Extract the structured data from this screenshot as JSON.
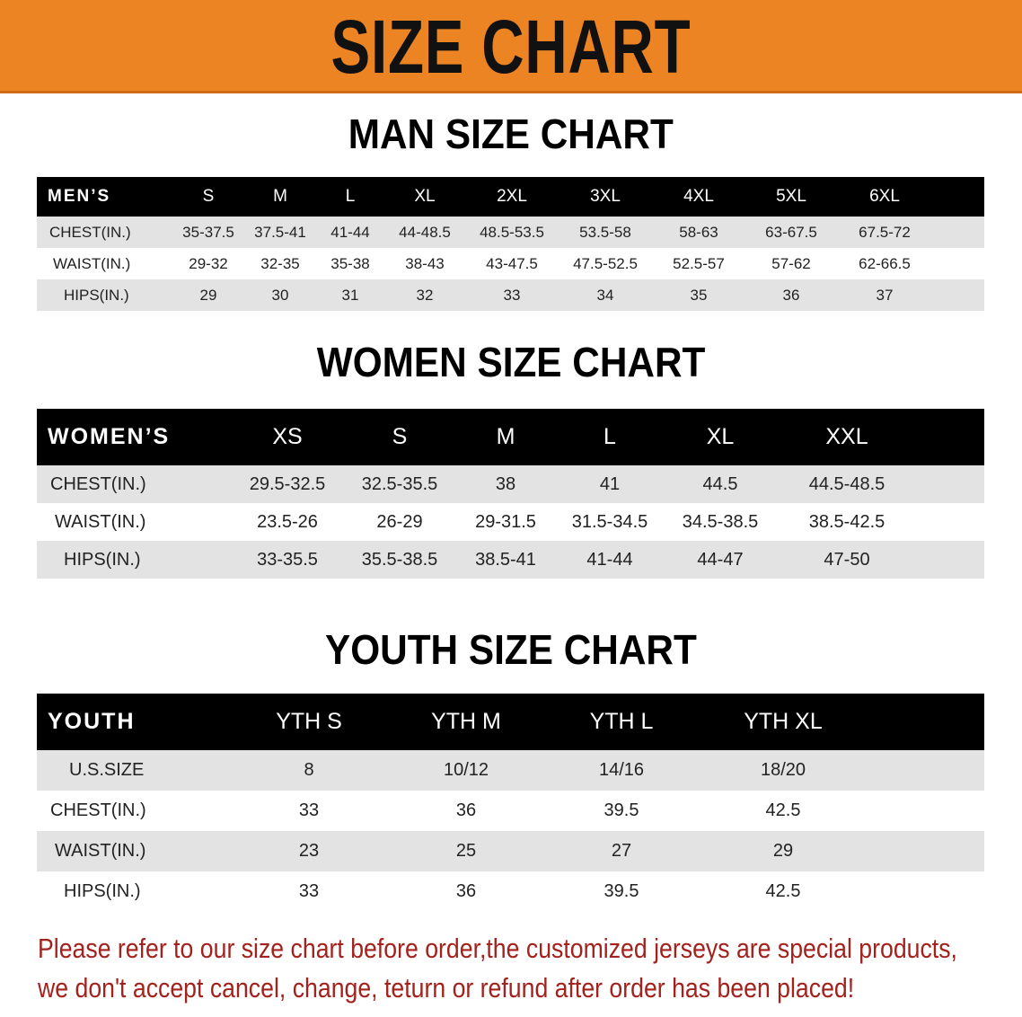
{
  "banner": {
    "title": "SIZE CHART",
    "color": "#ec8423"
  },
  "men": {
    "title": "MAN SIZE CHART",
    "header": [
      "MEN’S",
      "S",
      "M",
      "L",
      "XL",
      "2XL",
      "3XL",
      "4XL",
      "5XL",
      "6XL"
    ],
    "rows": [
      [
        "CHEST(IN.)",
        "35-37.5",
        "37.5-41",
        "41-44",
        "44-48.5",
        "48.5-53.5",
        "53.5-58",
        "58-63",
        "63-67.5",
        "67.5-72"
      ],
      [
        "WAIST(IN.)",
        "29-32",
        "32-35",
        "35-38",
        "38-43",
        "43-47.5",
        "47.5-52.5",
        "52.5-57",
        "57-62",
        "62-66.5"
      ],
      [
        "HIPS(IN.)",
        "29",
        "30",
        "31",
        "32",
        "33",
        "34",
        "35",
        "36",
        "37"
      ]
    ]
  },
  "women": {
    "title": "WOMEN SIZE CHART",
    "header": [
      "WOMEN’S",
      "XS",
      "S",
      "M",
      "L",
      "XL",
      "XXL"
    ],
    "rows": [
      [
        "CHEST(IN.)",
        "29.5-32.5",
        "32.5-35.5",
        "38",
        "41",
        "44.5",
        "44.5-48.5"
      ],
      [
        "WAIST(IN.)",
        "23.5-26",
        "26-29",
        "29-31.5",
        "31.5-34.5",
        "34.5-38.5",
        "38.5-42.5"
      ],
      [
        "HIPS(IN.)",
        "33-35.5",
        "35.5-38.5",
        "38.5-41",
        "41-44",
        "44-47",
        "47-50"
      ]
    ]
  },
  "youth": {
    "title": "YOUTH SIZE CHART",
    "header": [
      "YOUTH",
      "YTH S",
      "YTH M",
      "YTH L",
      "YTH XL"
    ],
    "rows": [
      [
        "U.S.SIZE",
        "8",
        "10/12",
        "14/16",
        "18/20"
      ],
      [
        "CHEST(IN.)",
        "33",
        "36",
        "39.5",
        "42.5"
      ],
      [
        "WAIST(IN.)",
        "23",
        "25",
        "27",
        "29"
      ],
      [
        "HIPS(IN.)",
        "33",
        "36",
        "39.5",
        "42.5"
      ]
    ]
  },
  "footer": {
    "line1": "Please refer to our size chart before order,the customized jerseys are special products,",
    "line2": "we don't accept cancel, change, teturn or refund after order has been placed!",
    "color": "#a3221d"
  }
}
